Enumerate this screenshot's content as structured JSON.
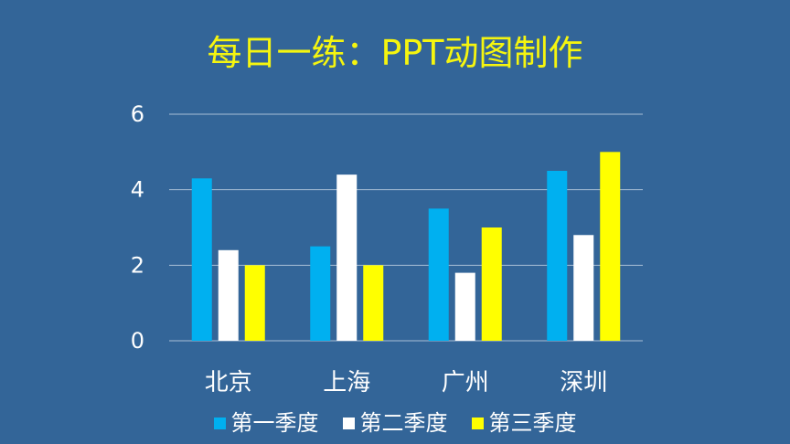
{
  "chart_data": {
    "type": "bar",
    "title": "每日一练：PPT动图制作",
    "xlabel": "",
    "ylabel": "",
    "categories": [
      "北京",
      "上海",
      "广州",
      "深圳"
    ],
    "series": [
      {
        "name": "第一季度",
        "values": [
          4.3,
          2.5,
          3.5,
          4.5
        ],
        "color": "#00B0F0"
      },
      {
        "name": "第二季度",
        "values": [
          2.4,
          4.4,
          1.8,
          2.8
        ],
        "color": "#FFFFFF"
      },
      {
        "name": "第三季度",
        "values": [
          2.0,
          2.0,
          3.0,
          5.0
        ],
        "color": "#FFFF00"
      }
    ],
    "ylim": [
      0,
      6
    ],
    "yticks": [
      0,
      2,
      4,
      6
    ],
    "grid": true,
    "legend": "bottom"
  },
  "colors": {
    "background": "#336598",
    "title": "#F5F50F",
    "text": "#FFFFFF",
    "gridline": "#A9BFD6"
  }
}
